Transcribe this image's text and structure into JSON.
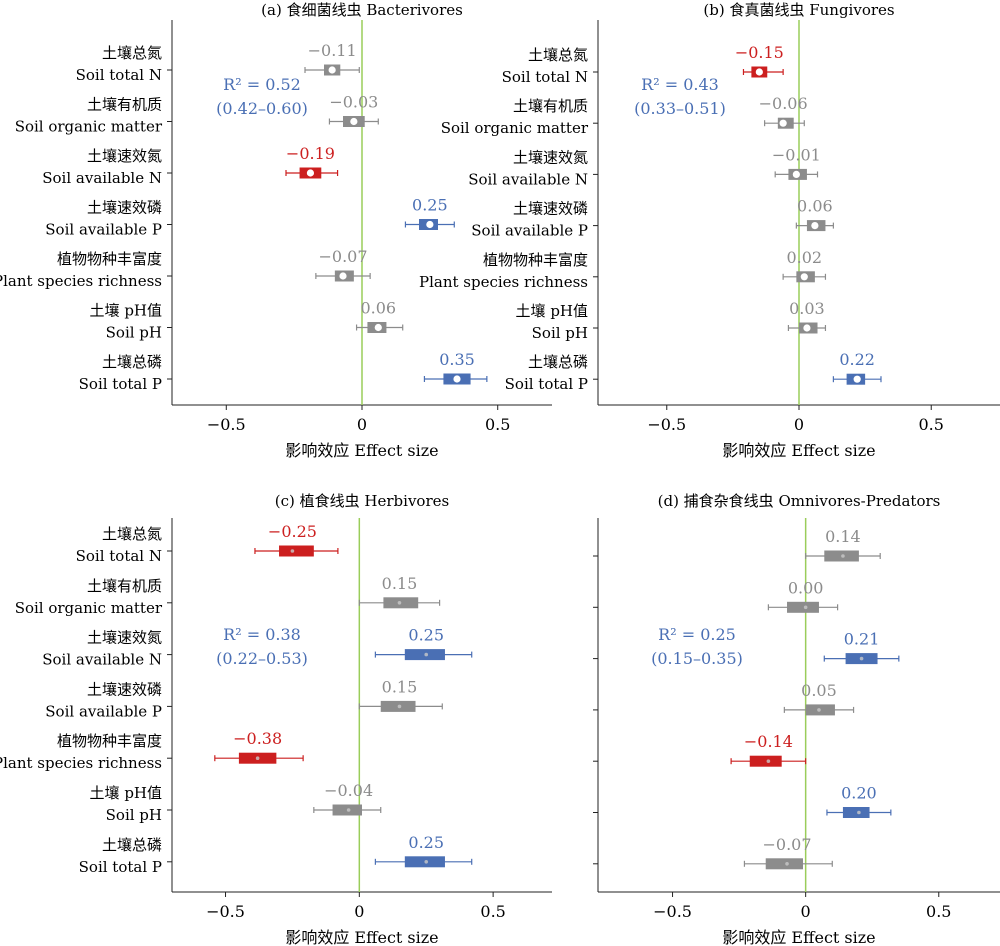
{
  "figure": {
    "colors": {
      "red": "#cc1f1f",
      "blue": "#4a6fb4",
      "gray": "#8c8c8c",
      "zero_line": "#9acd5a",
      "axis": "#222222",
      "label_text": "#000000"
    }
  },
  "chart_data": [
    {
      "type": "forest",
      "title": "(a) 食细菌线虫 Bacterivores",
      "xlabel": "影响效应 Effect size",
      "xlim": [
        -0.7,
        0.7
      ],
      "xticks": [
        -0.5,
        0,
        0.5
      ],
      "xtick_labels": [
        "−0.5",
        "0",
        "0.5"
      ],
      "reference_line": 0,
      "r2_label": "R² = 0.52",
      "r2_ci": "(0.42–0.60)",
      "point_marker": "white-dot",
      "rows": [
        {
          "zh": "土壤总氮",
          "en": "Soil total N",
          "estimate": -0.11,
          "label": "−0.11",
          "box": [
            -0.14,
            -0.08
          ],
          "ci": [
            -0.21,
            -0.01
          ],
          "color": "gray"
        },
        {
          "zh": "土壤有机质",
          "en": "Soil organic matter",
          "estimate": -0.03,
          "label": "−0.03",
          "box": [
            -0.07,
            0.01
          ],
          "ci": [
            -0.12,
            0.06
          ],
          "color": "gray"
        },
        {
          "zh": "土壤速效氮",
          "en": "Soil available N",
          "estimate": -0.19,
          "label": "−0.19",
          "box": [
            -0.23,
            -0.15
          ],
          "ci": [
            -0.28,
            -0.09
          ],
          "color": "red"
        },
        {
          "zh": "土壤速效磷",
          "en": "Soil available P",
          "estimate": 0.25,
          "label": "0.25",
          "box": [
            0.21,
            0.28
          ],
          "ci": [
            0.16,
            0.34
          ],
          "color": "blue"
        },
        {
          "zh": "植物物种丰富度",
          "en": "Plant species richness",
          "estimate": -0.07,
          "label": "−0.07",
          "box": [
            -0.1,
            -0.03
          ],
          "ci": [
            -0.17,
            0.03
          ],
          "color": "gray"
        },
        {
          "zh": "土壤 pH值",
          "en": "Soil pH",
          "estimate": 0.06,
          "label": "0.06",
          "box": [
            0.02,
            0.09
          ],
          "ci": [
            -0.02,
            0.15
          ],
          "color": "gray"
        },
        {
          "zh": "土壤总磷",
          "en": "Soil total P",
          "estimate": 0.35,
          "label": "0.35",
          "box": [
            0.3,
            0.4
          ],
          "ci": [
            0.23,
            0.46
          ],
          "color": "blue"
        }
      ]
    },
    {
      "type": "forest",
      "title": "(b) 食真菌线虫 Fungivores",
      "xlabel": "影响效应 Effect size",
      "xlim": [
        -0.76,
        0.76
      ],
      "xticks": [
        -0.5,
        0,
        0.5
      ],
      "xtick_labels": [
        "−0.5",
        "0",
        "0.5"
      ],
      "reference_line": 0,
      "r2_label": "R² = 0.43",
      "r2_ci": "(0.33–0.51)",
      "point_marker": "white-dot",
      "rows": [
        {
          "zh": "土壤总氮",
          "en": "Soil total N",
          "estimate": -0.15,
          "label": "−0.15",
          "box": [
            -0.18,
            -0.12
          ],
          "ci": [
            -0.21,
            -0.06
          ],
          "color": "red"
        },
        {
          "zh": "土壤有机质",
          "en": "Soil organic matter",
          "estimate": -0.06,
          "label": "−0.06",
          "box": [
            -0.08,
            -0.02
          ],
          "ci": [
            -0.13,
            0.02
          ],
          "color": "gray"
        },
        {
          "zh": "土壤速效氮",
          "en": "Soil available N",
          "estimate": -0.01,
          "label": "−0.01",
          "box": [
            -0.04,
            0.03
          ],
          "ci": [
            -0.09,
            0.07
          ],
          "color": "gray"
        },
        {
          "zh": "土壤速效磷",
          "en": "Soil available P",
          "estimate": 0.06,
          "label": "0.06",
          "box": [
            0.03,
            0.1
          ],
          "ci": [
            -0.01,
            0.13
          ],
          "color": "gray"
        },
        {
          "zh": "植物物种丰富度",
          "en": "Plant species richness",
          "estimate": 0.02,
          "label": "0.02",
          "box": [
            -0.01,
            0.06
          ],
          "ci": [
            -0.06,
            0.1
          ],
          "color": "gray"
        },
        {
          "zh": "土壤 pH值",
          "en": "Soil pH",
          "estimate": 0.03,
          "label": "0.03",
          "box": [
            0.0,
            0.07
          ],
          "ci": [
            -0.04,
            0.1
          ],
          "color": "gray"
        },
        {
          "zh": "土壤总磷",
          "en": "Soil total P",
          "estimate": 0.22,
          "label": "0.22",
          "box": [
            0.18,
            0.25
          ],
          "ci": [
            0.13,
            0.31
          ],
          "color": "blue"
        }
      ]
    },
    {
      "type": "forest",
      "title": "(c) 植食线虫 Herbivores",
      "xlabel": "影响效应 Effect size",
      "xlim": [
        -0.7,
        0.72
      ],
      "xticks": [
        -0.5,
        0,
        0.5
      ],
      "xtick_labels": [
        "−0.5",
        "0",
        "0.5"
      ],
      "reference_line": 0,
      "r2_label": "R² = 0.38",
      "r2_ci": "(0.22–0.53)",
      "point_marker": "small-dot",
      "rows": [
        {
          "zh": "土壤总氮",
          "en": "Soil total N",
          "estimate": -0.25,
          "label": "−0.25",
          "box": [
            -0.3,
            -0.17
          ],
          "ci": [
            -0.39,
            -0.08
          ],
          "color": "red"
        },
        {
          "zh": "土壤有机质",
          "en": "Soil organic matter",
          "estimate": 0.15,
          "label": "0.15",
          "box": [
            0.09,
            0.22
          ],
          "ci": [
            0.0,
            0.3
          ],
          "color": "gray"
        },
        {
          "zh": "土壤速效氮",
          "en": "Soil available N",
          "estimate": 0.25,
          "label": "0.25",
          "box": [
            0.17,
            0.32
          ],
          "ci": [
            0.06,
            0.42
          ],
          "color": "blue"
        },
        {
          "zh": "土壤速效磷",
          "en": "Soil available P",
          "estimate": 0.15,
          "label": "0.15",
          "box": [
            0.08,
            0.21
          ],
          "ci": [
            0.0,
            0.31
          ],
          "color": "gray"
        },
        {
          "zh": "植物物种丰富度",
          "en": "Plant species richness",
          "estimate": -0.38,
          "label": "−0.38",
          "box": [
            -0.45,
            -0.31
          ],
          "ci": [
            -0.54,
            -0.21
          ],
          "color": "red"
        },
        {
          "zh": "土壤 pH值",
          "en": "Soil pH",
          "estimate": -0.04,
          "label": "−0.04",
          "box": [
            -0.1,
            0.01
          ],
          "ci": [
            -0.17,
            0.08
          ],
          "color": "gray"
        },
        {
          "zh": "土壤总磷",
          "en": "Soil total P",
          "estimate": 0.25,
          "label": "0.25",
          "box": [
            0.17,
            0.32
          ],
          "ci": [
            0.06,
            0.42
          ],
          "color": "blue"
        }
      ]
    },
    {
      "type": "forest",
      "title": "(d) 捕食杂食线虫 Omnivores-Predators",
      "xlabel": "影响效应 Effect size",
      "xlim": [
        -0.78,
        0.73
      ],
      "xticks": [
        -0.5,
        0,
        0.5
      ],
      "xtick_labels": [
        "−0.5",
        "0",
        "0.5"
      ],
      "reference_line": 0,
      "r2_label": "R² = 0.25",
      "r2_ci": "(0.15–0.35)",
      "point_marker": "small-dot",
      "rows": [
        {
          "zh": "",
          "en": "",
          "estimate": 0.14,
          "label": "0.14",
          "box": [
            0.07,
            0.2
          ],
          "ci": [
            0.0,
            0.28
          ],
          "color": "gray"
        },
        {
          "zh": "",
          "en": "",
          "estimate": 0.0,
          "label": "0.00",
          "box": [
            -0.07,
            0.05
          ],
          "ci": [
            -0.14,
            0.12
          ],
          "color": "gray"
        },
        {
          "zh": "",
          "en": "",
          "estimate": 0.21,
          "label": "0.21",
          "box": [
            0.15,
            0.27
          ],
          "ci": [
            0.07,
            0.35
          ],
          "color": "blue"
        },
        {
          "zh": "",
          "en": "",
          "estimate": 0.05,
          "label": "0.05",
          "box": [
            0.0,
            0.11
          ],
          "ci": [
            -0.08,
            0.18
          ],
          "color": "gray"
        },
        {
          "zh": "",
          "en": "",
          "estimate": -0.14,
          "label": "−0.14",
          "box": [
            -0.21,
            -0.09
          ],
          "ci": [
            -0.28,
            0.0
          ],
          "color": "red"
        },
        {
          "zh": "",
          "en": "",
          "estimate": 0.2,
          "label": "0.20",
          "box": [
            0.14,
            0.24
          ],
          "ci": [
            0.08,
            0.32
          ],
          "color": "blue"
        },
        {
          "zh": "",
          "en": "",
          "estimate": -0.07,
          "label": "−0.07",
          "box": [
            -0.15,
            -0.01
          ],
          "ci": [
            -0.23,
            0.1
          ],
          "color": "gray"
        }
      ]
    }
  ]
}
